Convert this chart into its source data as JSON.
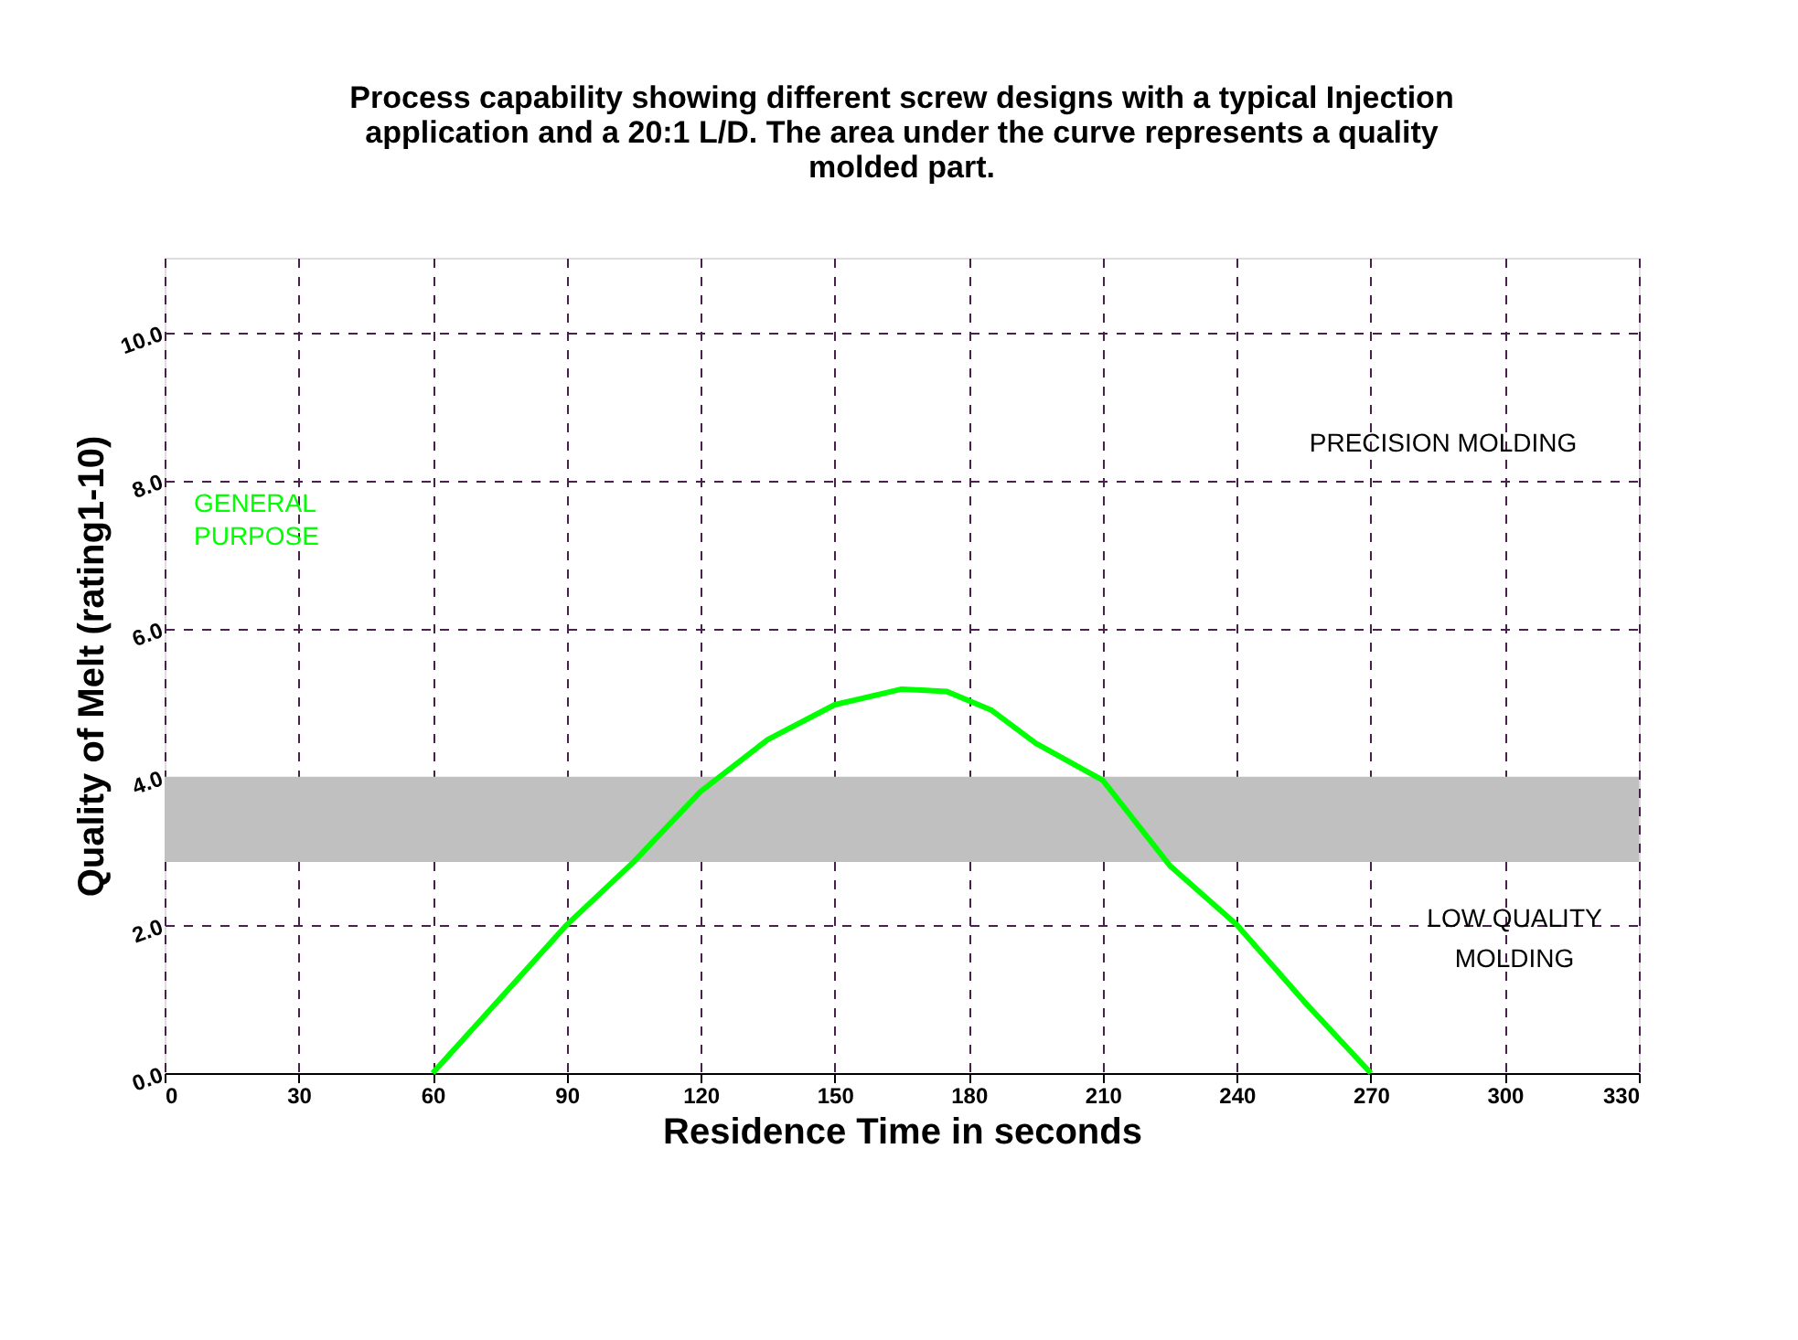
{
  "chart_data": {
    "type": "line",
    "title": "Process capability showing different screw designs with a typical Injection application and a 20:1 L/D.  The area under the curve represents a quality molded part.",
    "xlabel": "Residence Time in seconds",
    "ylabel": "Quality of Melt (rating1-10)",
    "x": [
      60,
      75,
      90,
      105,
      120,
      135,
      150,
      165,
      175,
      185,
      195,
      210,
      225,
      240,
      255,
      270
    ],
    "series": [
      {
        "name": "GENERAL PURPOSE",
        "color": "#00ff00",
        "values": [
          0,
          1.0,
          2.0,
          2.85,
          3.8,
          4.5,
          4.97,
          5.18,
          5.15,
          4.9,
          4.45,
          3.95,
          2.8,
          2.0,
          0.97,
          0
        ]
      }
    ],
    "xlim": [
      0,
      330
    ],
    "xticks": [
      0,
      30,
      60,
      90,
      120,
      150,
      180,
      210,
      240,
      270,
      300,
      330
    ],
    "ylim": [
      0,
      11
    ],
    "yticks": [
      {
        "value": 0,
        "label": "0.0"
      },
      {
        "value": 2,
        "label": "2.0"
      },
      {
        "value": 4,
        "label": "4.0"
      },
      {
        "value": 6,
        "label": "6.0"
      },
      {
        "value": 8,
        "label": "8.0"
      },
      {
        "value": 10,
        "label": "10.0"
      }
    ],
    "bands": [
      {
        "axis": "y",
        "from": 2.85,
        "to": 4.0,
        "color": "#c0c0c0"
      }
    ],
    "annotations": [
      "PRECISION MOLDING",
      "LOW QUALITY MOLDING"
    ],
    "grid": true,
    "legend": false,
    "marker": "none",
    "line_style": "solid"
  }
}
